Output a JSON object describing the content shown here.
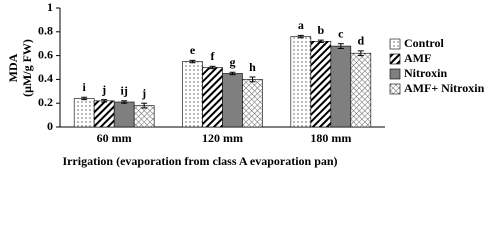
{
  "chart_data": {
    "type": "bar",
    "ylabel": [
      "MDA",
      "(μM/g FW)"
    ],
    "xlabel": "Irrigation  (evaporation from class A evaporation pan)",
    "categories": [
      "60 mm",
      "120 mm",
      "180 mm"
    ],
    "series": [
      {
        "name": "Control",
        "color": "#ffffff",
        "pattern": "dots",
        "values": [
          0.24,
          0.55,
          0.76
        ],
        "errors": [
          0.01,
          0.01,
          0.01
        ],
        "letters": [
          "i",
          "e",
          "a"
        ]
      },
      {
        "name": "AMF",
        "color": "#ffffff",
        "pattern": "stripes",
        "values": [
          0.22,
          0.5,
          0.72
        ],
        "errors": [
          0.01,
          0.01,
          0.01
        ],
        "letters": [
          "j",
          "f",
          "b"
        ]
      },
      {
        "name": "Nitroxin",
        "color": "#7f7f7f",
        "pattern": "solid",
        "values": [
          0.21,
          0.45,
          0.68
        ],
        "errors": [
          0.01,
          0.01,
          0.02
        ],
        "letters": [
          "ij",
          "g",
          "c"
        ]
      },
      {
        "name": "AMF+ Nitroxin",
        "color": "#ffffff",
        "pattern": "crosshatch",
        "values": [
          0.18,
          0.4,
          0.62
        ],
        "errors": [
          0.02,
          0.02,
          0.02
        ],
        "letters": [
          "j",
          "h",
          "d"
        ]
      }
    ],
    "ylim": [
      0,
      1
    ],
    "yticks": [
      0,
      0.2,
      0.4,
      0.6,
      0.8,
      1
    ],
    "grid": false,
    "legend": "right"
  }
}
